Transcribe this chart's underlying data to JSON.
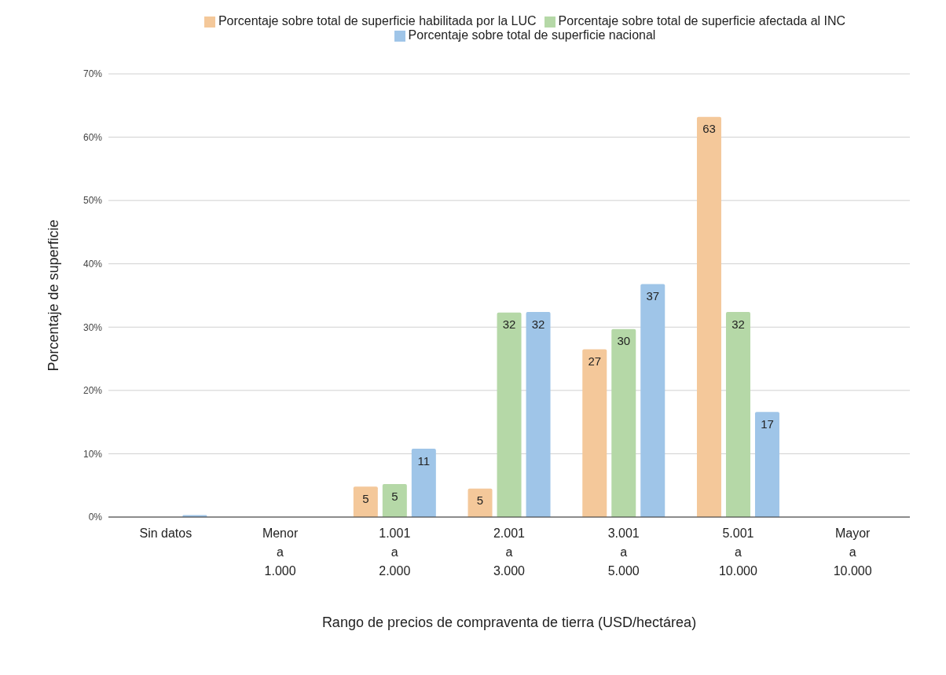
{
  "chart_data": {
    "type": "bar",
    "xlabel": "Rango de precios de compraventa de tierra (USD/hectárea)",
    "ylabel": "Porcentaje de superficie",
    "categories": [
      "Sin datos",
      "Menor\na\n1.000",
      "1.001\na\n2.000",
      "2.001\na\n3.000",
      "3.001\na\n5.000",
      "5.001\na\n10.000",
      "Mayor\na\n10.000"
    ],
    "series": [
      {
        "name": "Porcentaje sobre total de superficie habilitada por la LUC",
        "color": "#f4c89a",
        "values": [
          0,
          0,
          4.8,
          4.5,
          26.5,
          63.2,
          0
        ],
        "value_labels": [
          null,
          null,
          "5",
          "5",
          "27",
          "63",
          null
        ]
      },
      {
        "name": "Porcentaje sobre total de superficie afectada al INC",
        "color": "#b5d8a7",
        "values": [
          0,
          0,
          5.2,
          32.3,
          29.7,
          32.4,
          0
        ],
        "value_labels": [
          null,
          null,
          "5",
          "32",
          "30",
          "32",
          null
        ]
      },
      {
        "name": "Porcentaje sobre total de superficie nacional",
        "color": "#9fc5e8",
        "values": [
          0.3,
          0,
          10.8,
          32.4,
          36.8,
          16.6,
          0
        ],
        "value_labels": [
          null,
          null,
          "11",
          "32",
          "37",
          "17",
          null
        ]
      }
    ],
    "ylim": [
      0,
      70
    ],
    "yticks": [
      {
        "value": 0,
        "label": "0%"
      },
      {
        "value": 10,
        "label": "10%"
      },
      {
        "value": 20,
        "label": "20%"
      },
      {
        "value": 30,
        "label": "30%"
      },
      {
        "value": 40,
        "label": "40%"
      },
      {
        "value": 50,
        "label": "50%"
      },
      {
        "value": 60,
        "label": "60%"
      },
      {
        "value": 70,
        "label": "70%"
      }
    ],
    "grid": "y",
    "legend": "top"
  }
}
